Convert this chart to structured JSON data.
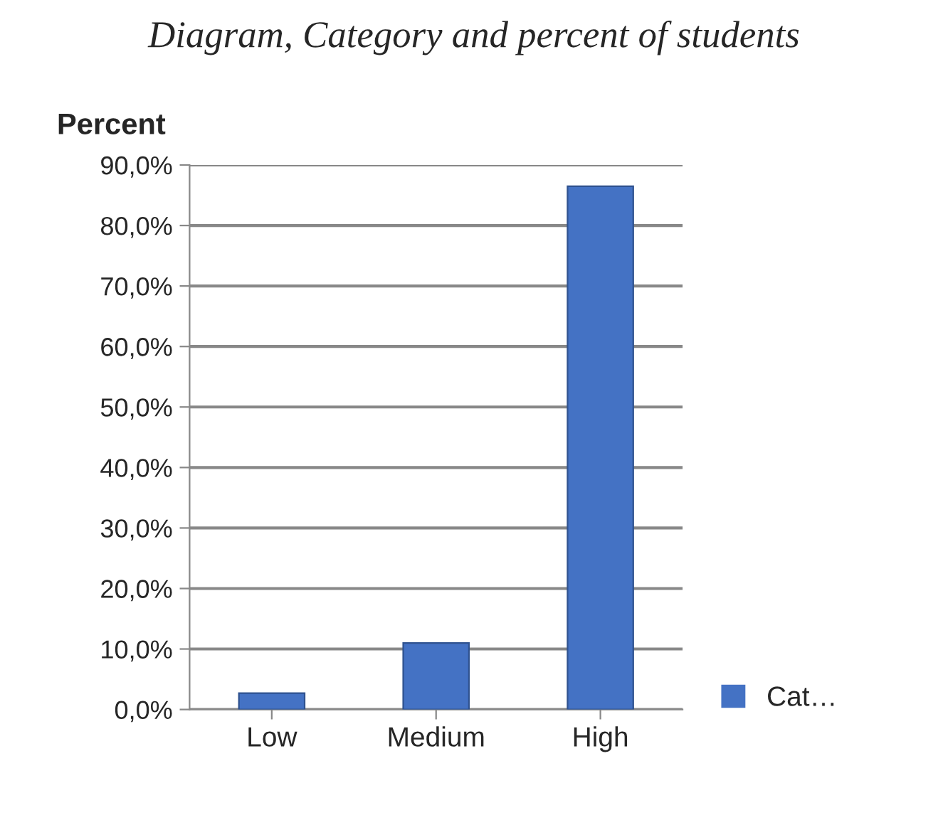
{
  "chart_data": {
    "type": "bar",
    "title": "Diagram, Category and percent of students",
    "ylabel": "Percent",
    "categories": [
      "Low",
      "Medium",
      "High"
    ],
    "series": [
      {
        "name": "Cat…",
        "color": "#4472c4",
        "values": [
          2.7,
          11.0,
          86.5
        ]
      }
    ],
    "ylim": [
      0,
      90
    ],
    "yticks": [
      {
        "value": 0,
        "label": "0,0%"
      },
      {
        "value": 10,
        "label": "10,0%"
      },
      {
        "value": 20,
        "label": "20,0%"
      },
      {
        "value": 30,
        "label": "30,0%"
      },
      {
        "value": 40,
        "label": "40,0%"
      },
      {
        "value": 50,
        "label": "50,0%"
      },
      {
        "value": 60,
        "label": "60,0%"
      },
      {
        "value": 70,
        "label": "70,0%"
      },
      {
        "value": 80,
        "label": "80,0%"
      },
      {
        "value": 90,
        "label": "90,0%"
      }
    ],
    "grid": "y",
    "legend": "right"
  }
}
